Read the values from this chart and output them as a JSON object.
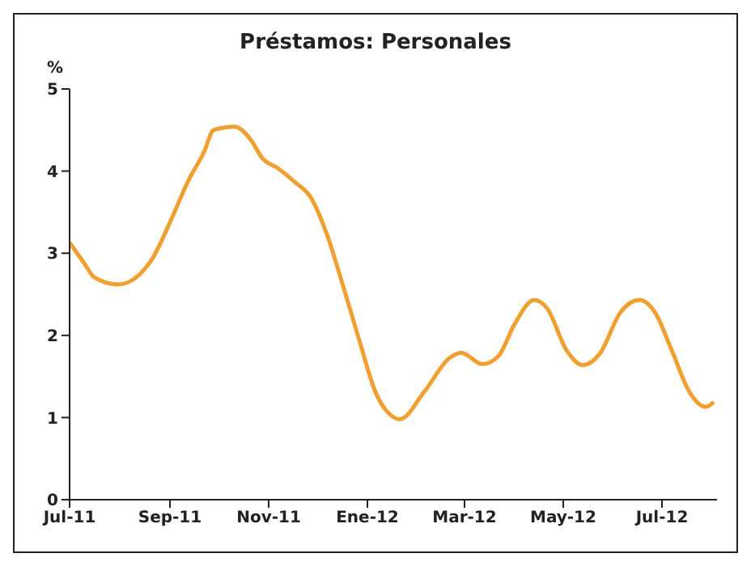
{
  "chart_data": {
    "type": "line",
    "title": "Préstamos: Personales",
    "ylabel": "%",
    "x": [
      "2011-07-01",
      "2011-07-11",
      "2011-07-16",
      "2011-07-31",
      "2011-08-20",
      "2011-09-02",
      "2011-09-12",
      "2011-09-22",
      "2011-09-28",
      "2011-10-11",
      "2011-10-21",
      "2011-10-28",
      "2011-11-07",
      "2011-11-17",
      "2011-11-27",
      "2011-12-07",
      "2011-12-17",
      "2011-12-27",
      "2012-01-06",
      "2012-01-16",
      "2012-01-21",
      "2012-02-05",
      "2012-02-21",
      "2012-02-28",
      "2012-03-12",
      "2012-03-22",
      "2012-04-01",
      "2012-04-13",
      "2012-04-21",
      "2012-05-03",
      "2012-05-13",
      "2012-05-24",
      "2012-06-05",
      "2012-06-17",
      "2012-06-27",
      "2012-07-07",
      "2012-07-18",
      "2012-07-28",
      "2012-08-02"
    ],
    "series": [
      {
        "color": "#f0a030",
        "values": [
          3.13,
          2.85,
          2.71,
          2.62,
          2.9,
          3.42,
          3.87,
          4.23,
          4.5,
          4.54,
          4.38,
          4.16,
          4.03,
          3.87,
          3.68,
          3.23,
          2.6,
          1.94,
          1.31,
          1.02,
          0.98,
          1.31,
          1.73,
          1.79,
          1.65,
          1.75,
          2.14,
          2.43,
          2.33,
          1.82,
          1.64,
          1.79,
          2.27,
          2.43,
          2.27,
          1.82,
          1.31,
          1.13,
          1.19
        ]
      }
    ],
    "xlim": [
      "2011-07-01",
      "2012-08-04"
    ],
    "xticks": [
      {
        "value": "2011-07-01",
        "label": "Jul-11"
      },
      {
        "value": "2011-09-01",
        "label": "Sep-11"
      },
      {
        "value": "2011-11-01",
        "label": "Nov-11"
      },
      {
        "value": "2012-01-01",
        "label": "Ene-12"
      },
      {
        "value": "2012-03-01",
        "label": "Mar-12"
      },
      {
        "value": "2012-05-01",
        "label": "May-12"
      },
      {
        "value": "2012-07-01",
        "label": "Jul-12"
      }
    ],
    "ylim": [
      0,
      5
    ],
    "yticks": [
      0,
      1,
      2,
      3,
      4,
      5
    ],
    "grid": false,
    "legend": false,
    "marker": "none",
    "line_style": "solid"
  }
}
